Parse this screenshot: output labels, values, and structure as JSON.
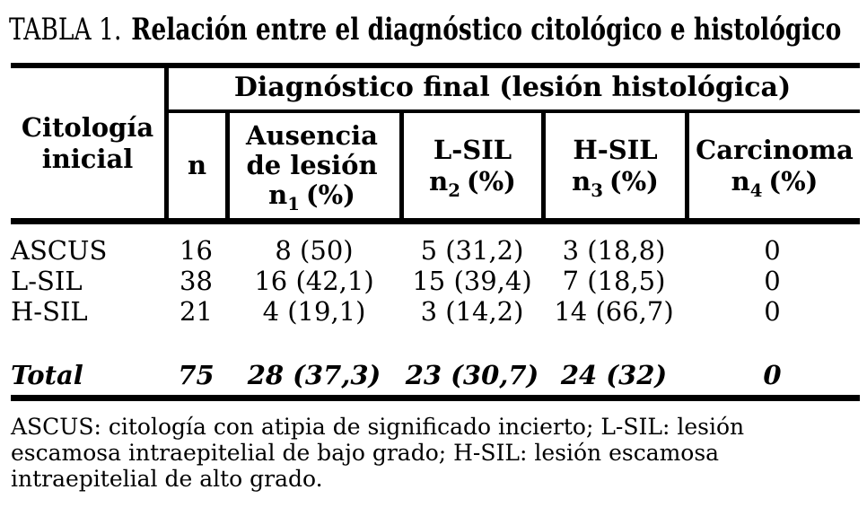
{
  "title": {
    "label": "TABLA 1.",
    "text": "Relación entre el diagnóstico citológico e histológico"
  },
  "table": {
    "corner_header": {
      "line1": "Citología",
      "line2": "inicial"
    },
    "span_header": "Diagnóstico final (lesión histológica)",
    "columns": {
      "n": "n",
      "ausencia": {
        "line1": "Ausencia",
        "line2": "de lesión",
        "n": "n",
        "sub": "1",
        "pct": "(%)"
      },
      "lsil": {
        "line1": "L-SIL",
        "n": "n",
        "sub": "2",
        "pct": "(%)"
      },
      "hsil": {
        "line1": "H-SIL",
        "n": "n",
        "sub": "3",
        "pct": "(%)"
      },
      "carcinoma": {
        "line1": "Carcinoma",
        "n": "n",
        "sub": "4",
        "pct": "(%)"
      }
    },
    "rows": [
      {
        "label": "ASCUS",
        "n": "16",
        "ausencia": "8 (50)",
        "lsil": "5 (31,2)",
        "hsil": "3 (18,8)",
        "carcinoma": "0"
      },
      {
        "label": "L-SIL",
        "n": "38",
        "ausencia": "16 (42,1)",
        "lsil": "15 (39,4)",
        "hsil": "7 (18,5)",
        "carcinoma": "0"
      },
      {
        "label": "H-SIL",
        "n": "21",
        "ausencia": "4 (19,1)",
        "lsil": "3 (14,2)",
        "hsil": "14 (66,7)",
        "carcinoma": "0"
      }
    ],
    "total": {
      "label": "Total",
      "n": "75",
      "ausencia": "28 (37,3)",
      "lsil": "23 (30,7)",
      "hsil": "24 (32)",
      "carcinoma": "0"
    }
  },
  "footnote": {
    "lines": [
      "ASCUS: citología con atipia de significado incierto; L-SIL: lesión",
      "escamosa intraepitelial de bajo grado; H-SIL: lesión escamosa",
      "intraepitelial de alto grado."
    ]
  },
  "colors": {
    "text": "#000000",
    "background": "#ffffff",
    "rule": "#000000"
  }
}
